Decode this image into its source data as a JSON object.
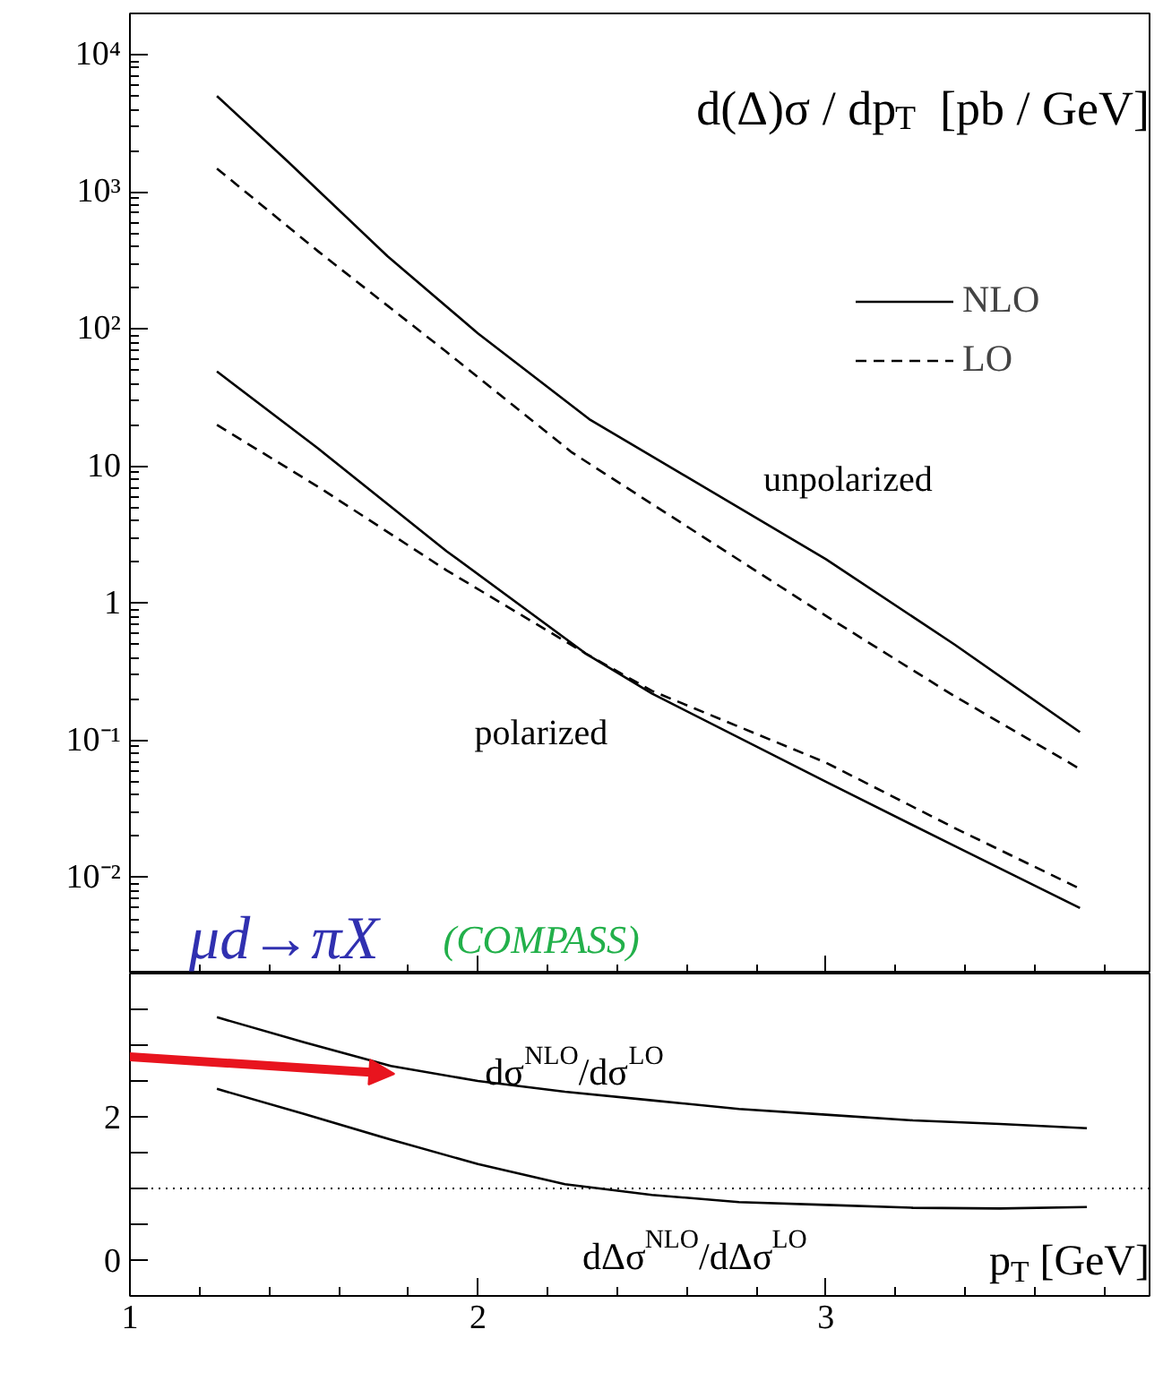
{
  "chart_data": [
    {
      "type": "line",
      "title": "d(Δ)σ / dp$_{T}$  [pb / GeV]",
      "log": true,
      "xlim": [
        1,
        3.93
      ],
      "xticks": [
        1,
        2,
        3
      ],
      "ylim": [
        0.002,
        20000
      ],
      "yticks": [
        {
          "value": 0.01,
          "label": "10⁻²"
        },
        {
          "value": 0.1,
          "label": "10⁻¹"
        },
        1,
        10,
        {
          "value": 100,
          "label": "10²"
        },
        {
          "value": 1000,
          "label": "10³"
        },
        {
          "value": 10000,
          "label": "10⁴"
        }
      ],
      "tick_labels": "y",
      "legend": "top right",
      "grid": false,
      "annotations": [
        "unpolarized",
        "polarized",
        "μd→πX",
        "(COMPASS)"
      ],
      "series": [
        {
          "name": "NLO",
          "color": "#000000",
          "line_style": "solid",
          "x": [
            1.25,
            1.45,
            1.74,
            2.0,
            2.32,
            3.0,
            3.37,
            3.73
          ],
          "values": [
            5000,
            1700,
            340,
            93,
            22,
            2.1,
            0.5,
            0.115
          ]
        },
        {
          "name": "LO",
          "color": "#000000",
          "line_style": "dashed",
          "x": [
            1.25,
            1.54,
            1.91,
            2.27,
            3.0,
            3.37,
            3.73
          ],
          "values": [
            1480,
            370,
            68,
            12.6,
            0.81,
            0.21,
            0.062
          ]
        },
        {
          "color": "#000000",
          "line_style": "solid",
          "x": [
            1.25,
            1.54,
            1.91,
            2.31,
            2.5,
            3.0,
            3.37,
            3.73
          ],
          "values": [
            49,
            13.5,
            2.4,
            0.43,
            0.22,
            0.05,
            0.017,
            0.006
          ]
        },
        {
          "color": "#000000",
          "line_style": "dashed",
          "x": [
            1.25,
            1.54,
            1.91,
            2.31,
            2.5,
            3.0,
            3.37,
            3.73
          ],
          "values": [
            20,
            7.1,
            1.74,
            0.43,
            0.23,
            0.069,
            0.023,
            0.0083
          ]
        }
      ]
    },
    {
      "type": "line",
      "xlabel": "p$_{T}$ [GeV]",
      "xlim": [
        1,
        3.93
      ],
      "xticks": [
        1,
        2,
        3
      ],
      "ylim": [
        -0.5,
        4
      ],
      "yticks": [
        0,
        {
          "value": 0.5,
          "label": null
        },
        {
          "value": 1,
          "label": null
        },
        {
          "value": 1.5,
          "label": null
        },
        2,
        {
          "value": 2.5,
          "label": null
        },
        {
          "value": 3,
          "label": null
        },
        {
          "value": 3.5,
          "label": null
        }
      ],
      "legend": false,
      "grid": false,
      "ref_lines": [
        {
          "axis": "y",
          "value": 1,
          "line_style": "dotted",
          "color": "#000000"
        }
      ],
      "series": [
        {
          "name": "dσ$^{NLO}$/dσ$^{LO}$",
          "color": "#000000",
          "line_style": "solid",
          "x": [
            1.25,
            1.5,
            1.75,
            2.0,
            2.25,
            2.5,
            2.75,
            3.0,
            3.25,
            3.5,
            3.75
          ],
          "values": [
            3.39,
            3.04,
            2.71,
            2.5,
            2.35,
            2.23,
            2.11,
            2.03,
            1.95,
            1.9,
            1.84
          ]
        },
        {
          "name": "dΔσ$^{NLO}$/dΔσ$^{LO}$",
          "color": "#000000",
          "line_style": "solid",
          "x": [
            1.25,
            1.5,
            1.75,
            2.0,
            2.25,
            2.5,
            2.75,
            3.0,
            3.25,
            3.5,
            3.75
          ],
          "values": [
            2.39,
            2.04,
            1.68,
            1.34,
            1.06,
            0.91,
            0.81,
            0.77,
            0.73,
            0.72,
            0.74
          ]
        }
      ]
    }
  ]
}
